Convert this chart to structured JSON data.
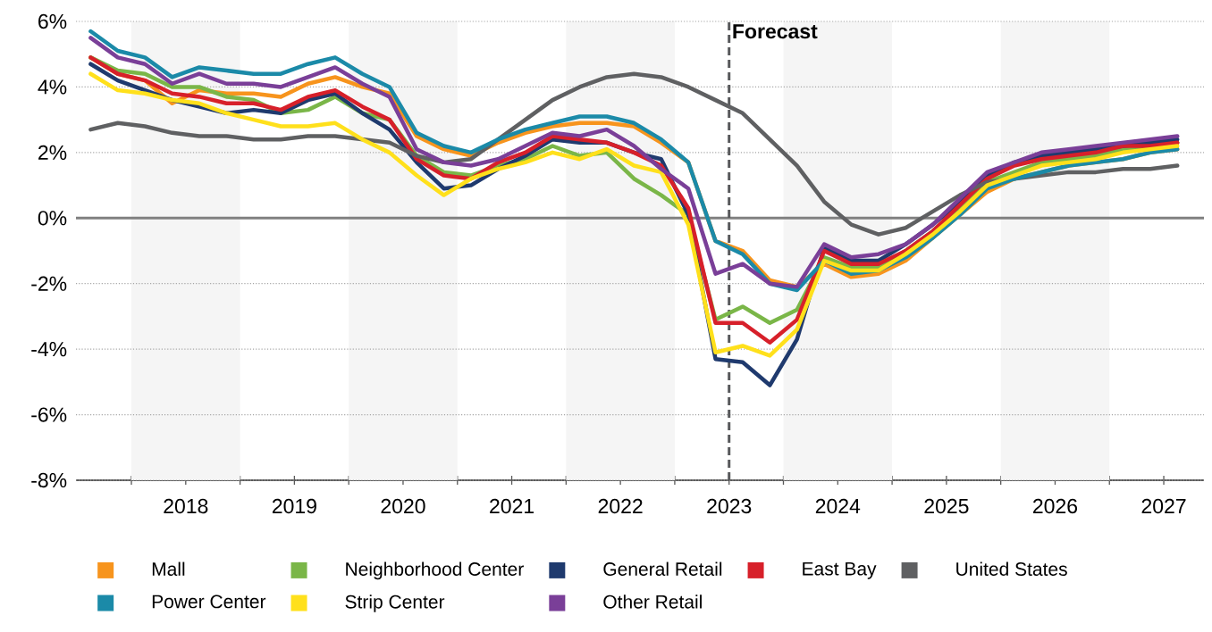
{
  "chart_data": {
    "type": "line",
    "x": [
      2017.625,
      2017.875,
      2018.125,
      2018.375,
      2018.625,
      2018.875,
      2019.125,
      2019.375,
      2019.625,
      2019.875,
      2020.125,
      2020.375,
      2020.625,
      2020.875,
      2021.125,
      2021.375,
      2021.625,
      2021.875,
      2022.125,
      2022.375,
      2022.625,
      2022.875,
      2023.125,
      2023.375,
      2023.625,
      2023.875,
      2024.125,
      2024.375,
      2024.625,
      2024.875,
      2025.125,
      2025.375,
      2025.625,
      2025.875,
      2026.125,
      2026.375,
      2026.625,
      2026.875,
      2027.125,
      2027.375,
      2027.625
    ],
    "series": [
      {
        "name": "Mall",
        "color": "#f7941d",
        "values": [
          4.9,
          4.4,
          4.2,
          3.5,
          3.9,
          3.8,
          3.8,
          3.7,
          4.1,
          4.3,
          4.0,
          3.8,
          2.5,
          2.1,
          1.9,
          2.3,
          2.6,
          2.8,
          2.9,
          2.9,
          2.8,
          2.3,
          1.7,
          -0.7,
          -1.0,
          -1.9,
          -2.1,
          -1.4,
          -1.8,
          -1.7,
          -1.3,
          -0.6,
          0.1,
          0.8,
          1.2,
          1.4,
          1.6,
          1.7,
          1.8,
          2.0,
          2.1
        ]
      },
      {
        "name": "Neighborhood Center",
        "color": "#7ab648",
        "values": [
          4.9,
          4.5,
          4.4,
          4.0,
          4.0,
          3.7,
          3.6,
          3.2,
          3.3,
          3.7,
          3.2,
          3.0,
          1.9,
          1.4,
          1.3,
          1.6,
          1.8,
          2.2,
          1.9,
          2.0,
          1.2,
          0.7,
          0.1,
          -3.1,
          -2.7,
          -3.2,
          -2.8,
          -1.2,
          -1.5,
          -1.5,
          -1.0,
          -0.4,
          0.3,
          1.1,
          1.4,
          1.7,
          1.8,
          1.9,
          2.1,
          2.2,
          2.3
        ]
      },
      {
        "name": "General Retail",
        "color": "#1f3a6e",
        "values": [
          4.7,
          4.2,
          3.9,
          3.6,
          3.4,
          3.2,
          3.3,
          3.2,
          3.6,
          3.8,
          3.2,
          2.7,
          1.7,
          0.9,
          1.0,
          1.5,
          1.9,
          2.4,
          2.3,
          2.3,
          2.0,
          1.8,
          0.1,
          -4.3,
          -4.4,
          -5.1,
          -3.7,
          -0.9,
          -1.3,
          -1.3,
          -0.8,
          -0.2,
          0.5,
          1.3,
          1.7,
          1.9,
          2.0,
          2.1,
          2.2,
          2.3,
          2.4
        ]
      },
      {
        "name": "East Bay",
        "color": "#d7202a",
        "values": [
          4.9,
          4.4,
          4.2,
          3.8,
          3.7,
          3.5,
          3.5,
          3.3,
          3.7,
          3.9,
          3.4,
          3.0,
          1.8,
          1.3,
          1.2,
          1.7,
          2.0,
          2.5,
          2.4,
          2.3,
          2.0,
          1.6,
          0.3,
          -3.2,
          -3.2,
          -3.8,
          -3.1,
          -1.0,
          -1.4,
          -1.4,
          -1.0,
          -0.4,
          0.4,
          1.2,
          1.6,
          1.8,
          1.9,
          2.0,
          2.2,
          2.2,
          2.3
        ]
      },
      {
        "name": "United States",
        "color": "#5f6062",
        "values": [
          2.7,
          2.9,
          2.8,
          2.6,
          2.5,
          2.5,
          2.4,
          2.4,
          2.5,
          2.5,
          2.4,
          2.3,
          1.9,
          1.7,
          1.8,
          2.4,
          3.0,
          3.6,
          4.0,
          4.3,
          4.4,
          4.3,
          4.0,
          3.6,
          3.2,
          2.4,
          1.6,
          0.5,
          -0.2,
          -0.5,
          -0.3,
          0.2,
          0.7,
          1.1,
          1.2,
          1.3,
          1.4,
          1.4,
          1.5,
          1.5,
          1.6
        ]
      },
      {
        "name": "Power Center",
        "color": "#1b8aa8",
        "values": [
          5.7,
          5.1,
          4.9,
          4.3,
          4.6,
          4.5,
          4.4,
          4.4,
          4.7,
          4.9,
          4.4,
          4.0,
          2.6,
          2.2,
          2.0,
          2.4,
          2.7,
          2.9,
          3.1,
          3.1,
          2.9,
          2.4,
          1.7,
          -0.7,
          -1.1,
          -2.0,
          -2.2,
          -1.3,
          -1.7,
          -1.6,
          -1.2,
          -0.6,
          0.1,
          0.9,
          1.2,
          1.4,
          1.6,
          1.7,
          1.8,
          2.0,
          2.1
        ]
      },
      {
        "name": "Strip Center",
        "color": "#ffe01b",
        "values": [
          4.4,
          3.9,
          3.8,
          3.6,
          3.5,
          3.2,
          3.0,
          2.8,
          2.8,
          2.9,
          2.4,
          2.0,
          1.3,
          0.7,
          1.2,
          1.5,
          1.7,
          2.0,
          1.8,
          2.1,
          1.6,
          1.4,
          -0.2,
          -4.1,
          -3.9,
          -4.2,
          -3.4,
          -1.3,
          -1.6,
          -1.6,
          -1.1,
          -0.5,
          0.2,
          1.0,
          1.3,
          1.6,
          1.7,
          1.8,
          2.0,
          2.1,
          2.2
        ]
      },
      {
        "name": "Other Retail",
        "color": "#7a3f98",
        "values": [
          5.5,
          4.9,
          4.7,
          4.1,
          4.4,
          4.1,
          4.1,
          4.0,
          4.3,
          4.6,
          4.1,
          3.7,
          2.1,
          1.7,
          1.6,
          1.8,
          2.2,
          2.6,
          2.5,
          2.7,
          2.2,
          1.5,
          0.9,
          -1.7,
          -1.4,
          -2.0,
          -2.1,
          -0.8,
          -1.2,
          -1.1,
          -0.8,
          -0.2,
          0.6,
          1.4,
          1.7,
          2.0,
          2.1,
          2.2,
          2.3,
          2.4,
          2.5
        ]
      }
    ],
    "xlim": [
      2017.49,
      2027.87
    ],
    "xticks": [
      {
        "value": 2018,
        "label": null
      },
      {
        "value": 2019,
        "label": null
      },
      {
        "value": 2020,
        "label": null
      },
      {
        "value": 2021,
        "label": null
      },
      {
        "value": 2022,
        "label": null
      },
      {
        "value": 2023,
        "label": null
      },
      {
        "value": 2024,
        "label": null
      },
      {
        "value": 2025,
        "label": null
      },
      {
        "value": 2026,
        "label": null
      },
      {
        "value": 2027,
        "label": null
      },
      {
        "value": 2018.5,
        "label": "2018"
      },
      {
        "value": 2019.5,
        "label": "2019"
      },
      {
        "value": 2020.5,
        "label": "2020"
      },
      {
        "value": 2021.5,
        "label": "2021"
      },
      {
        "value": 2022.5,
        "label": "2022"
      },
      {
        "value": 2023.5,
        "label": "2023"
      },
      {
        "value": 2024.5,
        "label": "2024"
      },
      {
        "value": 2025.5,
        "label": "2025"
      },
      {
        "value": 2026.5,
        "label": "2026"
      },
      {
        "value": 2027.5,
        "label": "2027"
      }
    ],
    "ylim": [
      -8,
      6
    ],
    "yticks": [
      {
        "value": -8,
        "label": "-8%"
      },
      {
        "value": -6,
        "label": "-6%"
      },
      {
        "value": -4,
        "label": "-4%"
      },
      {
        "value": -2,
        "label": "-2%"
      },
      {
        "value": 0,
        "label": "0%"
      },
      {
        "value": 2,
        "label": "2%"
      },
      {
        "value": 4,
        "label": "4%"
      },
      {
        "value": 6,
        "label": "6%"
      }
    ],
    "bands": [
      {
        "axis": "x",
        "from": 2018,
        "to": 2019,
        "color": "#f5f5f5"
      },
      {
        "axis": "x",
        "from": 2020,
        "to": 2021,
        "color": "#f5f5f5"
      },
      {
        "axis": "x",
        "from": 2022,
        "to": 2023,
        "color": "#f5f5f5"
      },
      {
        "axis": "x",
        "from": 2024,
        "to": 2025,
        "color": "#f5f5f5"
      },
      {
        "axis": "x",
        "from": 2026,
        "to": 2027,
        "color": "#f5f5f5"
      }
    ],
    "ref_lines": [
      {
        "axis": "y",
        "value": 0,
        "color": "#808080",
        "line_style": "solid"
      },
      {
        "axis": "x",
        "value": 2023.5,
        "label": "Forecast",
        "color": "#58595b",
        "line_style": "dashed"
      }
    ],
    "grid": "y",
    "legend": "bottom",
    "marker": "none"
  }
}
